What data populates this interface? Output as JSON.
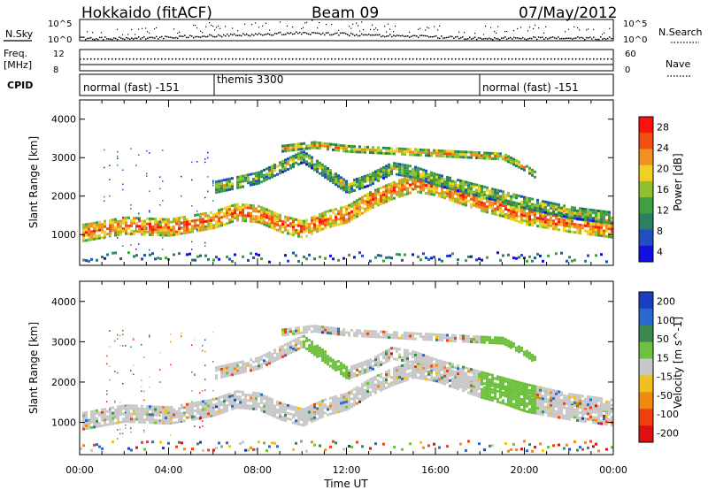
{
  "header": {
    "station": "Hokkaido (fitACF)",
    "beam": "Beam 09",
    "date": "07/May/2012"
  },
  "top_panel": {
    "nsky_label": "N.Sky",
    "nsky_ticks": [
      "10^5",
      "10^0"
    ],
    "nsearch_label": "N.Search",
    "right_ticks": [
      "10^5",
      "10^0"
    ],
    "freq_label_1": "Freq.",
    "freq_label_2": "[MHz]",
    "freq_ticks": [
      "12",
      "8"
    ],
    "nave_ticks": [
      "60",
      "0"
    ],
    "nave_label": "Nave",
    "cpid_label": "CPID",
    "cpid_segments": [
      {
        "label": "normal (fast) -151",
        "start_hour": 0,
        "end_hour": 6
      },
      {
        "label": "themis 3300",
        "start_hour": 6,
        "end_hour": 18
      },
      {
        "label": "normal (fast) -151",
        "start_hour": 18,
        "end_hour": 24
      }
    ]
  },
  "chart_data": [
    {
      "type": "heatmap",
      "title": "",
      "xlabel": "Time UT",
      "ylabel": "Slant Range [km]",
      "xlim": [
        0,
        24
      ],
      "ylim": [
        200,
        4500
      ],
      "x_ticks": [
        "00:00",
        "04:00",
        "08:00",
        "12:00",
        "16:00",
        "20:00",
        "00:00"
      ],
      "y_ticks": [
        1000,
        2000,
        3000,
        4000
      ],
      "colorbar": {
        "label": "Power [dB]",
        "ticks": [
          4,
          8,
          12,
          16,
          20,
          24,
          28
        ],
        "colors": [
          "#1010e0",
          "#2050c0",
          "#2a8060",
          "#40a040",
          "#90c030",
          "#f0d020",
          "#f09020",
          "#f05010",
          "#ff1010"
        ]
      },
      "echo_bands": [
        {
          "name": "main",
          "points": [
            [
              0,
              1000
            ],
            [
              2,
              1200
            ],
            [
              4,
              1150
            ],
            [
              6,
              1350
            ],
            [
              7,
              1550
            ],
            [
              8,
              1500
            ],
            [
              9,
              1250
            ],
            [
              10,
              1100
            ],
            [
              11,
              1350
            ],
            [
              12,
              1500
            ],
            [
              13,
              1850
            ],
            [
              14,
              2100
            ],
            [
              15,
              2300
            ],
            [
              16,
              2200
            ],
            [
              17,
              2000
            ],
            [
              18,
              1800
            ],
            [
              19,
              1650
            ],
            [
              20,
              1450
            ],
            [
              22,
              1250
            ],
            [
              24,
              1100
            ]
          ],
          "width_km": 420,
          "level": 22
        },
        {
          "name": "upper",
          "points": [
            [
              6,
              2200
            ],
            [
              8,
              2450
            ],
            [
              10,
              3000
            ],
            [
              11,
              2600
            ],
            [
              12,
              2200
            ],
            [
              13,
              2400
            ],
            [
              14,
              2700
            ],
            [
              15,
              2600
            ],
            [
              16,
              2400
            ],
            [
              18,
              2100
            ],
            [
              20,
              1800
            ],
            [
              22,
              1550
            ],
            [
              24,
              1400
            ]
          ],
          "width_km": 300,
          "level": 14
        },
        {
          "name": "high",
          "points": [
            [
              9,
              3200
            ],
            [
              10.5,
              3300
            ],
            [
              12,
              3200
            ],
            [
              19,
              3000
            ],
            [
              20,
              2700
            ],
            [
              20.5,
              2500
            ]
          ],
          "width_km": 150,
          "level": 18
        }
      ]
    },
    {
      "type": "heatmap",
      "title": "",
      "xlabel": "Time UT",
      "ylabel": "Slant Range [km]",
      "xlim": [
        0,
        24
      ],
      "ylim": [
        200,
        4500
      ],
      "x_ticks": [
        "00:00",
        "04:00",
        "08:00",
        "12:00",
        "16:00",
        "20:00",
        "00:00"
      ],
      "y_ticks": [
        1000,
        2000,
        3000,
        4000
      ],
      "colorbar": {
        "label": "Velocity [m s^-1]",
        "ticks": [
          200,
          100,
          50,
          15,
          -15,
          -50,
          -100,
          -200
        ],
        "colors": [
          "#1a3fc0",
          "#2a6ad0",
          "#3a8a50",
          "#70c040",
          "#c8c8c8",
          "#f0c020",
          "#f08a10",
          "#f04010",
          "#e01010"
        ]
      },
      "dominant_value": "ground-scatter (grey)",
      "notes": "Ground scatter grey band follows the power band; green positive velocities near 10–12 UT and 18–20 UT."
    }
  ]
}
